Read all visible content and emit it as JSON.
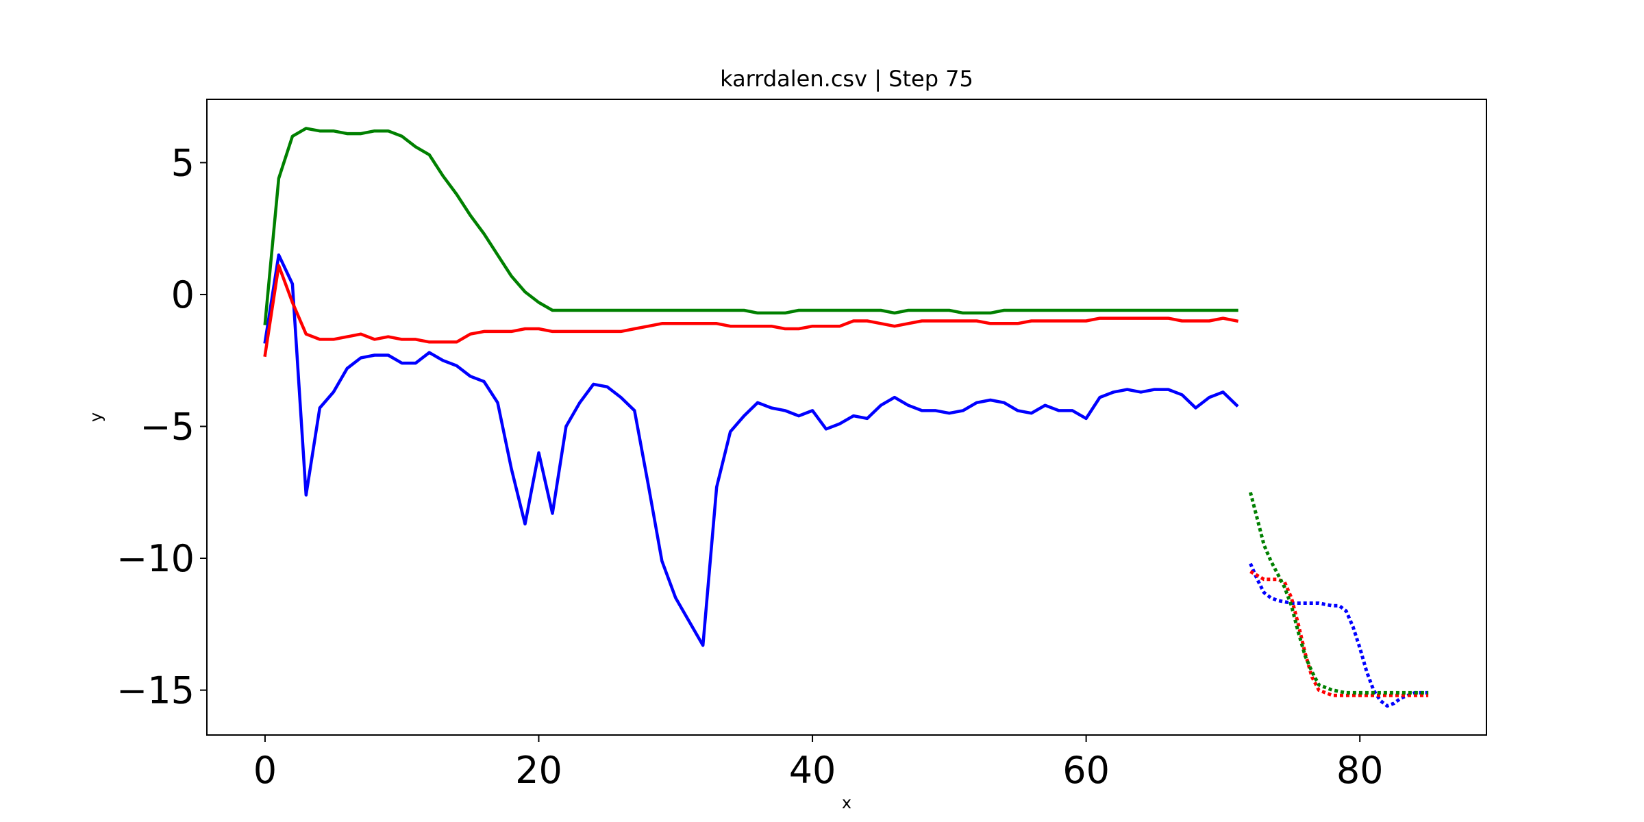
{
  "chart_data": {
    "type": "line",
    "title": "karrdalen.csv | Step 75",
    "xlabel": "x",
    "ylabel": "y",
    "xlim": [
      -4.25,
      89.25
    ],
    "ylim": [
      -16.7,
      7.4
    ],
    "xticks": [
      0,
      20,
      40,
      60,
      80
    ],
    "yticks": [
      5,
      0,
      -5,
      -10,
      -15
    ],
    "grid": false,
    "legend": "none",
    "series": [
      {
        "color": "#0000ff",
        "style": "solid",
        "x_start": 0,
        "values": [
          -1.8,
          1.5,
          0.4,
          -7.6,
          -4.3,
          -3.7,
          -2.8,
          -2.4,
          -2.3,
          -2.3,
          -2.6,
          -2.6,
          -2.2,
          -2.5,
          -2.7,
          -3.1,
          -3.3,
          -4.1,
          -6.6,
          -8.7,
          -6.0,
          -8.3,
          -5.0,
          -4.1,
          -3.4,
          -3.5,
          -3.9,
          -4.4,
          -7.2,
          -10.1,
          -11.5,
          -12.4,
          -13.3,
          -7.3,
          -5.2,
          -4.6,
          -4.1,
          -4.3,
          -4.4,
          -4.6,
          -4.4,
          -5.1,
          -4.9,
          -4.6,
          -4.7,
          -4.2,
          -3.9,
          -4.2,
          -4.4,
          -4.4,
          -4.5,
          -4.4,
          -4.1,
          -4.0,
          -4.1,
          -4.4,
          -4.5,
          -4.2,
          -4.4,
          -4.4,
          -4.7,
          -3.9,
          -3.7,
          -3.6,
          -3.7,
          -3.6,
          -3.6,
          -3.8,
          -4.3,
          -3.9,
          -3.7,
          -4.2
        ]
      },
      {
        "color": "#ff0000",
        "style": "solid",
        "x_start": 0,
        "values": [
          -2.3,
          1.1,
          -0.3,
          -1.5,
          -1.7,
          -1.7,
          -1.6,
          -1.5,
          -1.7,
          -1.6,
          -1.7,
          -1.7,
          -1.8,
          -1.8,
          -1.8,
          -1.5,
          -1.4,
          -1.4,
          -1.4,
          -1.3,
          -1.3,
          -1.4,
          -1.4,
          -1.4,
          -1.4,
          -1.4,
          -1.4,
          -1.3,
          -1.2,
          -1.1,
          -1.1,
          -1.1,
          -1.1,
          -1.1,
          -1.2,
          -1.2,
          -1.2,
          -1.2,
          -1.3,
          -1.3,
          -1.2,
          -1.2,
          -1.2,
          -1.0,
          -1.0,
          -1.1,
          -1.2,
          -1.1,
          -1.0,
          -1.0,
          -1.0,
          -1.0,
          -1.0,
          -1.1,
          -1.1,
          -1.1,
          -1.0,
          -1.0,
          -1.0,
          -1.0,
          -1.0,
          -0.9,
          -0.9,
          -0.9,
          -0.9,
          -0.9,
          -0.9,
          -1.0,
          -1.0,
          -1.0,
          -0.9,
          -1.0
        ]
      },
      {
        "color": "#008000",
        "style": "solid",
        "x_start": 0,
        "values": [
          -1.1,
          4.4,
          6.0,
          6.3,
          6.2,
          6.2,
          6.1,
          6.1,
          6.2,
          6.2,
          6.0,
          5.6,
          5.3,
          4.5,
          3.8,
          3.0,
          2.3,
          1.5,
          0.7,
          0.1,
          -0.3,
          -0.6,
          -0.6,
          -0.6,
          -0.6,
          -0.6,
          -0.6,
          -0.6,
          -0.6,
          -0.6,
          -0.6,
          -0.6,
          -0.6,
          -0.6,
          -0.6,
          -0.6,
          -0.7,
          -0.7,
          -0.7,
          -0.6,
          -0.6,
          -0.6,
          -0.6,
          -0.6,
          -0.6,
          -0.6,
          -0.7,
          -0.6,
          -0.6,
          -0.6,
          -0.6,
          -0.7,
          -0.7,
          -0.7,
          -0.6,
          -0.6,
          -0.6,
          -0.6,
          -0.6,
          -0.6,
          -0.6,
          -0.6,
          -0.6,
          -0.6,
          -0.6,
          -0.6,
          -0.6,
          -0.6,
          -0.6,
          -0.6,
          -0.6,
          -0.6
        ]
      },
      {
        "color": "#0000ff",
        "style": "dotted",
        "x": [
          72,
          72.5,
          73,
          73.5,
          74,
          75,
          76,
          77,
          78,
          78.5,
          79,
          79.5,
          80,
          80.5,
          81,
          81.5,
          82,
          82.5,
          83,
          84,
          85
        ],
        "values": [
          -10.2,
          -10.8,
          -11.3,
          -11.5,
          -11.6,
          -11.7,
          -11.7,
          -11.7,
          -11.8,
          -11.8,
          -12.0,
          -12.6,
          -13.4,
          -14.3,
          -15.0,
          -15.4,
          -15.6,
          -15.5,
          -15.3,
          -15.1,
          -15.1
        ]
      },
      {
        "color": "#ff0000",
        "style": "dotted",
        "x": [
          72,
          73,
          74,
          74.5,
          75,
          75.5,
          76,
          76.5,
          77,
          78,
          79,
          80,
          81,
          82,
          83,
          84,
          85
        ],
        "values": [
          -10.5,
          -10.8,
          -10.8,
          -10.9,
          -11.5,
          -12.5,
          -13.6,
          -14.5,
          -15.0,
          -15.2,
          -15.2,
          -15.2,
          -15.2,
          -15.2,
          -15.2,
          -15.2,
          -15.2
        ]
      },
      {
        "color": "#008000",
        "style": "dotted",
        "x": [
          72,
          72.5,
          73,
          73.5,
          74,
          74.5,
          75,
          75.5,
          76,
          76.5,
          77,
          78,
          79,
          80,
          81,
          82,
          83,
          84,
          85
        ],
        "values": [
          -7.5,
          -8.5,
          -9.5,
          -10.1,
          -10.6,
          -11.1,
          -11.8,
          -12.8,
          -13.7,
          -14.3,
          -14.8,
          -15.0,
          -15.1,
          -15.1,
          -15.1,
          -15.1,
          -15.1,
          -15.1,
          -15.1
        ]
      }
    ]
  }
}
